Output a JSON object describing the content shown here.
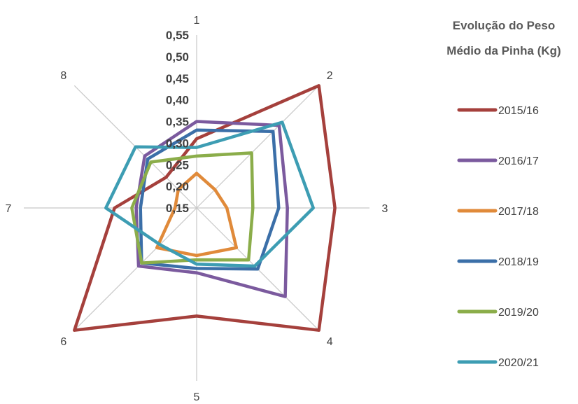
{
  "chart_data": {
    "type": "radar",
    "title_lines": [
      "Evolução do Peso",
      "Médio da Pinha (Kg)"
    ],
    "categories": [
      "1",
      "2",
      "3",
      "4",
      "5",
      "6",
      "7",
      "8"
    ],
    "r_min": 0.15,
    "r_max": 0.55,
    "ticks": [
      "0,15",
      "0,20",
      "0,25",
      "0,30",
      "0,35",
      "0,40",
      "0,45",
      "0,50",
      "0,55"
    ],
    "tick_values": [
      0.15,
      0.2,
      0.25,
      0.3,
      0.35,
      0.4,
      0.45,
      0.5,
      0.55
    ],
    "legend_position": "right",
    "grid": false,
    "series": [
      {
        "name": "2015/16",
        "color": "#a5403c",
        "values": [
          0.31,
          0.55,
          0.47,
          0.55,
          0.4,
          0.55,
          0.34,
          0.25
        ]
      },
      {
        "name": "2016/17",
        "color": "#7b5a9e",
        "values": [
          0.35,
          0.42,
          0.36,
          0.44,
          0.3,
          0.34,
          0.29,
          0.32
        ]
      },
      {
        "name": "2017/18",
        "color": "#e08a3a",
        "values": [
          0.23,
          0.21,
          0.22,
          0.28,
          0.26,
          0.28,
          0.2,
          0.21
        ]
      },
      {
        "name": "2018/19",
        "color": "#3b6fa8",
        "values": [
          0.33,
          0.4,
          0.34,
          0.35,
          0.29,
          0.33,
          0.28,
          0.31
        ]
      },
      {
        "name": "2019/20",
        "color": "#8bad4a",
        "values": [
          0.27,
          0.33,
          0.28,
          0.32,
          0.27,
          0.33,
          0.3,
          0.3
        ]
      },
      {
        "name": "2020/21",
        "color": "#3d9db3",
        "values": [
          0.29,
          0.43,
          0.42,
          0.34,
          0.28,
          0.27,
          0.36,
          0.35
        ]
      }
    ]
  }
}
